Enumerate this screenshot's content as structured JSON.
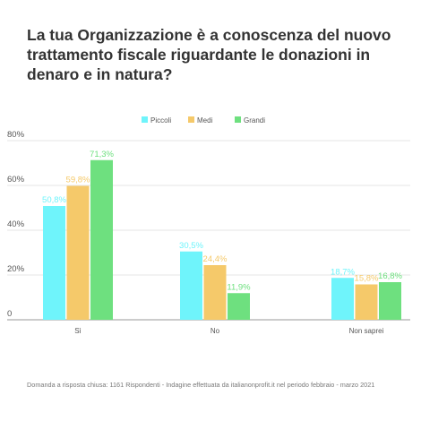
{
  "chart_data": {
    "type": "bar",
    "title": "La tua Organizzazione è a conoscenza del nuovo trattamento fiscale riguardante le donazioni in denaro e in natura?",
    "categories": [
      "Sì",
      "No",
      "Non saprei"
    ],
    "series": [
      {
        "name": "Piccoli",
        "color": "#6ff4fb",
        "values": [
          50.8,
          30.5,
          18.7
        ],
        "labels": [
          "50,8%",
          "30,5%",
          "18,7%"
        ]
      },
      {
        "name": "Medi",
        "color": "#f5c96a",
        "values": [
          59.8,
          24.4,
          15.8
        ],
        "labels": [
          "59,8%",
          "24,4%",
          "15,8%"
        ]
      },
      {
        "name": "Grandi",
        "color": "#6ee07f",
        "values": [
          71.3,
          11.9,
          16.8
        ],
        "labels": [
          "71,3%",
          "11,9%",
          "16,8%"
        ]
      }
    ],
    "yticks": [
      {
        "value": 0,
        "label": "0"
      },
      {
        "value": 20,
        "label": "20%"
      },
      {
        "value": 40,
        "label": "40%"
      },
      {
        "value": 60,
        "label": "60%"
      },
      {
        "value": 80,
        "label": "80%"
      }
    ],
    "ylim": [
      0,
      80
    ],
    "grid": true,
    "legend_position": "top-center",
    "footnote": "Domanda a risposta chiusa: 1161 Rispondenti - Indagine effettuata da italianonprofit.it nel periodo febbraio - marzo 2021"
  }
}
